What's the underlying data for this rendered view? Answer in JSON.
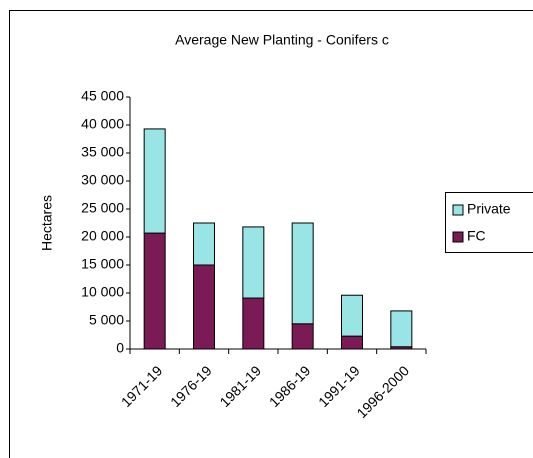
{
  "chart_data": {
    "type": "stacked_bar",
    "title": "Average New Planting - Conifers c",
    "y_label": "Hectares",
    "categories": [
      "1971-19",
      "1976-19",
      "1981-19",
      "1986-19",
      "1991-19",
      "1996-2000"
    ],
    "series": [
      {
        "name": "Private",
        "color": "#99e5e5",
        "values": [
          18600,
          7500,
          12700,
          18000,
          7300,
          6400
        ]
      },
      {
        "name": "FC",
        "color": "#7b1b55",
        "values": [
          20700,
          15000,
          9100,
          4500,
          2300,
          400
        ]
      }
    ],
    "ylim": [
      0,
      45000
    ],
    "yticks": [
      0,
      {
        "value": 5000,
        "label": "5 000"
      },
      {
        "value": 10000,
        "label": "10 000"
      },
      {
        "value": 15000,
        "label": "15 000"
      },
      {
        "value": 20000,
        "label": "20 000"
      },
      {
        "value": 25000,
        "label": "25 000"
      },
      {
        "value": 30000,
        "label": "30 000"
      },
      {
        "value": 35000,
        "label": "35 000"
      },
      {
        "value": 40000,
        "label": "40 000"
      },
      {
        "value": 45000,
        "label": "45 000"
      }
    ],
    "legend": "right"
  }
}
